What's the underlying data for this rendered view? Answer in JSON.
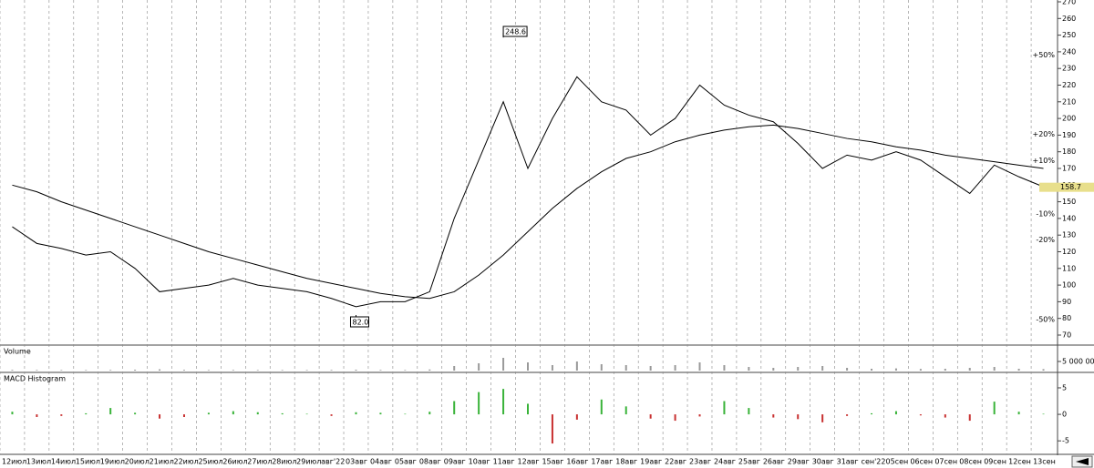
{
  "chart_data": [
    {
      "type": "line",
      "categories": [
        "12июл",
        "13июл",
        "14июл",
        "15июл",
        "19июл",
        "20июл",
        "21июл",
        "22июл",
        "25июл",
        "26июл",
        "27июл",
        "28июл",
        "29июл",
        "авг'22",
        "03авг",
        "04авг",
        "05авг",
        "08авг",
        "09авг",
        "10авг",
        "11авг",
        "12авг",
        "15авг",
        "16авг",
        "17авг",
        "18авг",
        "19авг",
        "22авг",
        "23авг",
        "24авг",
        "25авг",
        "26авг",
        "29авг",
        "30авг",
        "31авг",
        "сен'22",
        "05сен",
        "06сен",
        "07сен",
        "08сен",
        "09сен",
        "12сен",
        "13сен"
      ],
      "series": [
        {
          "color": "#000000",
          "values": [
            135,
            125,
            122,
            118,
            120,
            110,
            96,
            98,
            100,
            104,
            100,
            98,
            96,
            92,
            87,
            90,
            90,
            96,
            140,
            175,
            210,
            170,
            200,
            225,
            210,
            205,
            190,
            200,
            220,
            208,
            202,
            198,
            185,
            170,
            178,
            175,
            180,
            175,
            165,
            155,
            172,
            165,
            159
          ]
        },
        {
          "color": "#000000",
          "values": [
            160,
            156,
            150,
            145,
            140,
            135,
            130,
            125,
            120,
            116,
            112,
            108,
            104,
            101,
            98,
            95,
            93,
            92,
            96,
            106,
            118,
            132,
            146,
            158,
            168,
            176,
            180,
            186,
            190,
            193,
            195,
            196,
            194,
            191,
            188,
            186,
            183,
            181,
            178,
            176,
            174,
            172,
            170
          ]
        }
      ],
      "ylim": [
        70,
        270
      ],
      "yticks": [
        70,
        80,
        90,
        100,
        110,
        120,
        130,
        140,
        150,
        160,
        170,
        180,
        190,
        200,
        210,
        220,
        230,
        240,
        250,
        260,
        270
      ],
      "high": 248.6,
      "low": {
        "value": 82,
        "label": "82.0"
      },
      "last": 158.7,
      "last_color": "#e8df8c",
      "levels": [
        {
          "value": 238,
          "label": "+50%",
          "color": "#2e9a2e"
        },
        {
          "value": 190.4,
          "label": "+20%",
          "color": "#2e9a2e"
        },
        {
          "value": 174.6,
          "label": "+10%",
          "color": "#2e9a2e"
        },
        {
          "value": 142.8,
          "label": "-10%",
          "color": "#a83232"
        },
        {
          "value": 127,
          "label": "-20%",
          "color": "#a83232"
        },
        {
          "value": 79.4,
          "label": "-50%",
          "color": "#a83232"
        }
      ]
    },
    {
      "type": "bar",
      "title": "Volume",
      "color": "#999999",
      "values": [
        400000,
        350000,
        300000,
        300000,
        350000,
        500000,
        700000,
        400000,
        300000,
        350000,
        300000,
        300000,
        300000,
        350000,
        500000,
        350000,
        300000,
        600000,
        2500000,
        4000000,
        7000000,
        4500000,
        3000000,
        5000000,
        3500000,
        3000000,
        2500000,
        3000000,
        4500000,
        3000000,
        2000000,
        1500000,
        2000000,
        2500000,
        1500000,
        1000000,
        1200000,
        900000,
        1000000,
        1500000,
        2000000,
        1000000,
        800000
      ],
      "ylim": [
        0,
        12500000
      ],
      "yticks": [
        {
          "value": 5000000,
          "label": "5 000 000"
        }
      ]
    },
    {
      "type": "bar",
      "title": "MACD Histogram",
      "up_color": "#39b339",
      "down_color": "#c83030",
      "values": [
        0.5,
        -0.5,
        -0.3,
        0.2,
        1.2,
        0.3,
        -0.8,
        -0.5,
        0.3,
        0.6,
        0.4,
        0.2,
        0.1,
        -0.3,
        0.4,
        0.3,
        0.1,
        0.5,
        2.5,
        4.2,
        4.8,
        2,
        -5.5,
        -1,
        2.8,
        1.5,
        -0.8,
        -1.2,
        -0.4,
        2.5,
        1.2,
        -0.6,
        -0.9,
        -1.5,
        -0.3,
        0.2,
        0.6,
        -0.2,
        -0.6,
        -1.2,
        2.4,
        0.5,
        0.1
      ],
      "ylim": [
        -7.2,
        7.4
      ],
      "yticks": [
        -5,
        0,
        5
      ]
    }
  ]
}
